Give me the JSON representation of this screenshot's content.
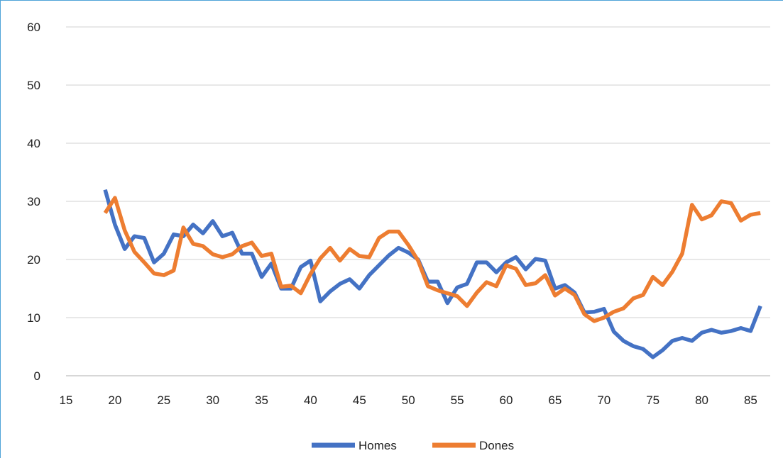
{
  "chart_data": {
    "type": "line",
    "title": "",
    "xlabel": "",
    "ylabel": "",
    "xlim": [
      15,
      87
    ],
    "ylim": [
      0,
      60
    ],
    "x_ticks": [
      15,
      20,
      25,
      30,
      35,
      40,
      45,
      50,
      55,
      60,
      65,
      70,
      75,
      80,
      85
    ],
    "y_ticks": [
      0,
      10,
      20,
      30,
      40,
      50,
      60
    ],
    "x_tick_labels": [
      "15",
      "20",
      "25",
      "30",
      "35",
      "40",
      "45",
      "50",
      "55",
      "60",
      "65",
      "70",
      "75",
      "80",
      "85"
    ],
    "y_tick_labels": [
      "0",
      "10",
      "20",
      "30",
      "40",
      "50",
      "60"
    ],
    "grid": "horizontal",
    "legend_position": "bottom",
    "x": [
      19,
      20,
      21,
      22,
      23,
      24,
      25,
      26,
      27,
      28,
      29,
      30,
      31,
      32,
      33,
      34,
      35,
      36,
      37,
      38,
      39,
      40,
      41,
      42,
      43,
      44,
      45,
      46,
      47,
      48,
      49,
      50,
      51,
      52,
      53,
      54,
      55,
      56,
      57,
      58,
      59,
      60,
      61,
      62,
      63,
      64,
      65,
      66,
      67,
      68,
      69,
      70,
      71,
      72,
      73,
      74,
      75,
      76,
      77,
      78,
      79,
      80,
      81,
      82,
      83,
      84,
      85,
      86
    ],
    "series": [
      {
        "name": "Homes",
        "color": "#4472c4",
        "values": [
          32,
          26,
          21.8,
          24,
          23.7,
          19.5,
          21,
          24.3,
          24,
          26,
          24.5,
          26.6,
          24,
          24.6,
          21,
          21,
          17,
          19.3,
          15,
          15,
          18.7,
          19.8,
          12.8,
          14.5,
          15.8,
          16.6,
          15,
          17.3,
          19,
          20.7,
          22,
          21.2,
          20,
          16.2,
          16.2,
          12.5,
          15.2,
          15.8,
          19.5,
          19.5,
          17.8,
          19.5,
          20.4,
          18.3,
          20.1,
          19.8,
          15,
          15.6,
          14.3,
          10.9,
          11,
          11.5,
          7.6,
          6,
          5.1,
          4.6,
          3.2,
          4.4,
          6,
          6.5,
          6,
          7.4,
          7.9,
          7.4,
          7.7,
          8.2,
          7.7,
          12
        ]
      },
      {
        "name": "Dones",
        "color": "#ed7d31",
        "values": [
          28,
          30.6,
          25,
          21.3,
          19.5,
          17.6,
          17.3,
          18.1,
          25.5,
          22.7,
          22.3,
          20.9,
          20.4,
          20.9,
          22.3,
          22.9,
          20.6,
          21,
          15.3,
          15.5,
          14.2,
          17.5,
          20.2,
          22,
          19.8,
          21.8,
          20.6,
          20.4,
          23.7,
          24.8,
          24.8,
          22.5,
          19.8,
          15.4,
          14.7,
          14.2,
          13.7,
          12,
          14.3,
          16.1,
          15.4,
          19,
          18.4,
          15.6,
          15.9,
          17.3,
          13.8,
          15,
          13.9,
          10.6,
          9.4,
          10,
          11,
          11.6,
          13.3,
          13.9,
          17,
          15.6,
          17.9,
          21,
          29.4,
          26.9,
          27.6,
          30,
          29.7,
          26.7,
          27.7,
          28
        ]
      }
    ]
  }
}
